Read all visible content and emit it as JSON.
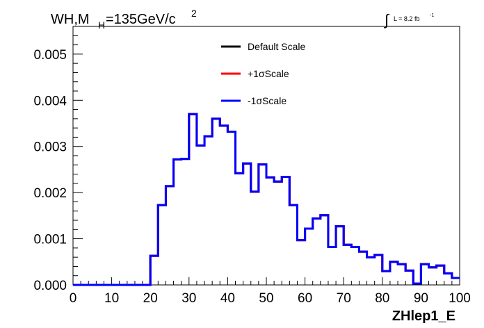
{
  "chart_data": {
    "type": "histogram-step",
    "title_main": "WH,M",
    "title_sub": "H",
    "title_rest": "=135GeV/c",
    "title_sup": "2",
    "lumi_prefix": "L = 8.2 fb",
    "lumi_sup": "-1",
    "xlabel": "ZHlep1_E",
    "xlim": [
      0,
      100
    ],
    "ylim": [
      0,
      0.0056
    ],
    "x_ticks": [
      0,
      10,
      20,
      30,
      40,
      50,
      60,
      70,
      80,
      90,
      100
    ],
    "x_tick_labels": [
      "0",
      "10",
      "20",
      "30",
      "40",
      "50",
      "60",
      "70",
      "80",
      "90",
      "100"
    ],
    "y_ticks": [
      0.0,
      0.001,
      0.002,
      0.003,
      0.004,
      0.005
    ],
    "y_tick_labels": [
      "0.000",
      "0.001",
      "0.002",
      "0.003",
      "0.004",
      "0.005"
    ],
    "bin_width": 2,
    "bin_edges_start": 0,
    "legend": [
      {
        "label": "Default Scale",
        "color": "#000000"
      },
      {
        "label": "+1σScale",
        "color": "#ff0000"
      },
      {
        "label": "-1σScale",
        "color": "#0000ff"
      }
    ],
    "series_values": [
      0,
      0,
      0,
      0,
      0,
      0,
      0,
      0,
      0,
      0,
      0.00063,
      0.00173,
      0.00214,
      0.00272,
      0.00273,
      0.0037,
      0.00302,
      0.00322,
      0.0036,
      0.00345,
      0.00332,
      0.00242,
      0.00263,
      0.00202,
      0.00261,
      0.00233,
      0.00224,
      0.00234,
      0.00173,
      0.00097,
      0.00122,
      0.00144,
      0.00151,
      0.00082,
      0.00127,
      0.00087,
      0.00082,
      0.00072,
      0.0006,
      0.00065,
      0.0003,
      0.0005,
      0.00045,
      0.00031,
      3e-05,
      0.00045,
      0.00038,
      0.00042,
      0.00025,
      0.00015
    ]
  }
}
